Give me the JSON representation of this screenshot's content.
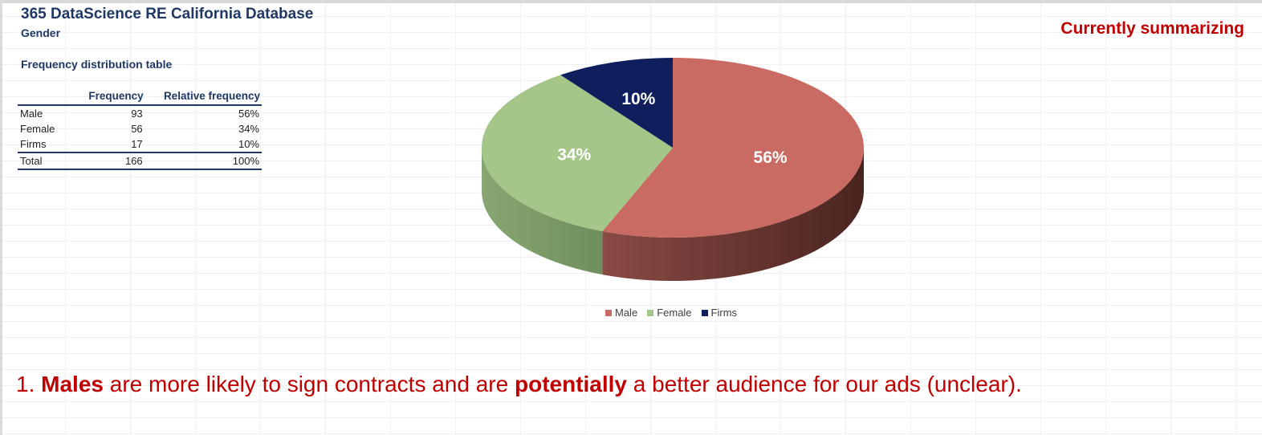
{
  "header": {
    "title": "365 DataScience RE California Database",
    "subtitle": "Gender",
    "status": "Currently summarizing"
  },
  "table": {
    "caption": "Frequency distribution table",
    "columns": [
      "",
      "Frequency",
      "Relative frequency"
    ],
    "rows": [
      {
        "label": "Male",
        "frequency": "93",
        "relative": "56%"
      },
      {
        "label": "Female",
        "frequency": "56",
        "relative": "34%"
      },
      {
        "label": "Firms",
        "frequency": "17",
        "relative": "10%"
      }
    ],
    "total": {
      "label": "Total",
      "frequency": "166",
      "relative": "100%"
    }
  },
  "chart_data": {
    "type": "pie",
    "categories": [
      "Male",
      "Female",
      "Firms"
    ],
    "values": [
      56,
      34,
      10
    ],
    "data_labels": [
      "56%",
      "34%",
      "10%"
    ],
    "colors": [
      "#c96b62",
      "#a4c689",
      "#0f1f5e"
    ],
    "legend": "bottom"
  },
  "legend": {
    "items": [
      {
        "label": "Male",
        "color": "#c96b62"
      },
      {
        "label": "Female",
        "color": "#a4c689"
      },
      {
        "label": "Firms",
        "color": "#0f1f5e"
      }
    ]
  },
  "insight": {
    "number": "1.",
    "part1": "Males",
    "part2": " are more likely to sign contracts and are ",
    "part3": "potentially",
    "part4": " a better audience for our ads (unclear)."
  }
}
